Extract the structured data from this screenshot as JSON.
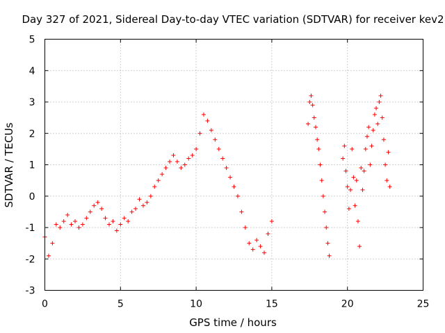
{
  "chart_data": {
    "type": "scatter",
    "title": "Day 327 of 2021, Sidereal Day-to-day VTEC variation (SDTVAR) for receiver kev2",
    "xlabel": "GPS time / hours",
    "ylabel": "SDTVAR / TECUs",
    "xlim": [
      0,
      25
    ],
    "ylim": [
      -3,
      5
    ],
    "xticks": [
      "0",
      "5",
      "10",
      "15",
      "20",
      "25"
    ],
    "yticks": [
      "-3",
      "-2",
      "-1",
      "0",
      "1",
      "2",
      "3",
      "4",
      "5"
    ],
    "grid": true,
    "marker": "+",
    "color": "#ff0000",
    "series": [
      {
        "name": "SDTVAR",
        "x": [
          0.0,
          0.25,
          0.5,
          0.75,
          1.0,
          1.25,
          1.5,
          1.75,
          2.0,
          2.25,
          2.5,
          2.75,
          3.0,
          3.25,
          3.5,
          3.75,
          4.0,
          4.25,
          4.5,
          4.75,
          5.0,
          5.25,
          5.5,
          5.75,
          6.0,
          6.25,
          6.5,
          6.75,
          7.0,
          7.25,
          7.5,
          7.75,
          8.0,
          8.25,
          8.5,
          8.75,
          9.0,
          9.25,
          9.5,
          9.75,
          10.0,
          10.25,
          10.5,
          10.75,
          11.0,
          11.25,
          11.5,
          11.75,
          12.0,
          12.25,
          12.5,
          12.75,
          13.0,
          13.25,
          13.5,
          13.75,
          14.0,
          14.25,
          14.5,
          14.75,
          15.0,
          17.4,
          17.5,
          17.6,
          17.7,
          17.8,
          17.9,
          18.0,
          18.1,
          18.2,
          18.3,
          18.4,
          18.5,
          18.6,
          18.7,
          18.8,
          19.7,
          19.8,
          19.9,
          20.0,
          20.1,
          20.2,
          20.3,
          20.4,
          20.5,
          20.6,
          20.7,
          20.8,
          20.9,
          21.0,
          21.1,
          21.2,
          21.3,
          21.4,
          21.5,
          21.6,
          21.7,
          21.8,
          21.9,
          22.0,
          22.1,
          22.2,
          22.3,
          22.4,
          22.5,
          22.6,
          22.7,
          22.8
        ],
        "y": [
          -1.3,
          -1.9,
          -1.5,
          -0.9,
          -1.0,
          -0.8,
          -0.6,
          -0.9,
          -0.8,
          -1.0,
          -0.9,
          -0.7,
          -0.5,
          -0.3,
          -0.2,
          -0.4,
          -0.7,
          -0.9,
          -0.8,
          -1.1,
          -0.9,
          -0.7,
          -0.8,
          -0.5,
          -0.4,
          -0.1,
          -0.3,
          -0.2,
          0.0,
          0.3,
          0.5,
          0.7,
          0.9,
          1.1,
          1.3,
          1.1,
          0.9,
          1.0,
          1.2,
          1.3,
          1.5,
          2.0,
          2.6,
          2.4,
          2.1,
          1.8,
          1.5,
          1.2,
          0.9,
          0.6,
          0.3,
          0.0,
          -0.5,
          -1.0,
          -1.5,
          -1.7,
          -1.4,
          -1.6,
          -1.8,
          -1.2,
          -0.8,
          2.3,
          3.0,
          3.2,
          2.9,
          2.5,
          2.2,
          1.8,
          1.5,
          1.0,
          0.5,
          0.0,
          -0.5,
          -1.0,
          -1.5,
          -1.9,
          1.2,
          1.6,
          0.8,
          0.3,
          -0.4,
          0.2,
          1.5,
          0.6,
          -0.3,
          0.5,
          -0.8,
          -1.6,
          0.9,
          0.2,
          0.8,
          1.5,
          1.9,
          2.2,
          1.0,
          1.6,
          2.1,
          2.6,
          2.8,
          2.3,
          3.0,
          3.2,
          2.5,
          1.8,
          1.0,
          0.5,
          1.4,
          0.3
        ]
      }
    ]
  }
}
